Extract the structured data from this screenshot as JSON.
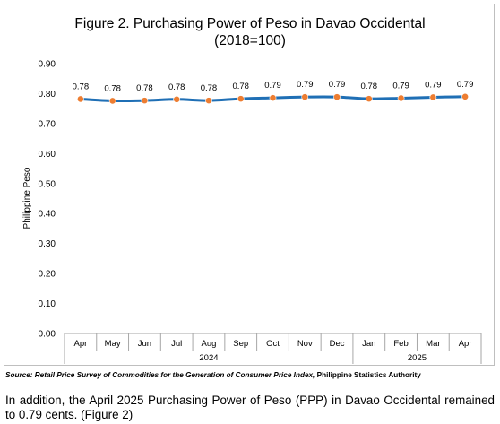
{
  "chart_data": {
    "type": "line",
    "title": "Figure 2. Purchasing Power of Peso in Davao Occidental",
    "subtitle": "(2018=100)",
    "ylabel": "Philippine Peso",
    "ylim": [
      0,
      0.9
    ],
    "yticks": [
      "0.00",
      "0.10",
      "0.20",
      "0.30",
      "0.40",
      "0.50",
      "0.60",
      "0.70",
      "0.80",
      "0.90"
    ],
    "categories": [
      "Apr",
      "May",
      "Jun",
      "Jul",
      "Aug",
      "Sep",
      "Oct",
      "Nov",
      "Dec",
      "Jan",
      "Feb",
      "Mar",
      "Apr"
    ],
    "year_groups": [
      {
        "label": "2024",
        "start": 0,
        "end": 8
      },
      {
        "label": "2025",
        "start": 9,
        "end": 12
      }
    ],
    "values": [
      0.782,
      0.776,
      0.777,
      0.781,
      0.777,
      0.783,
      0.786,
      0.789,
      0.789,
      0.783,
      0.785,
      0.788,
      0.79
    ],
    "data_labels": [
      "0.78",
      "0.78",
      "0.78",
      "0.78",
      "0.78",
      "0.78",
      "0.79",
      "0.79",
      "0.79",
      "0.78",
      "0.79",
      "0.79",
      "0.79"
    ],
    "grid": false,
    "legend": "none",
    "colors": {
      "line": "#1f6fb5",
      "marker": "#ed7d31",
      "axis": "#a6a6a6"
    }
  },
  "source": {
    "label": "Source:",
    "body": "Retail Price Survey of Commodities for the Generation of Consumer Price Index,",
    "agency": "Philippine Statistics Authority"
  },
  "paragraph": "In addition, the April 2025 Purchasing Power of Peso (PPP) in Davao Occidental remained to 0.79 cents. (Figure 2)"
}
